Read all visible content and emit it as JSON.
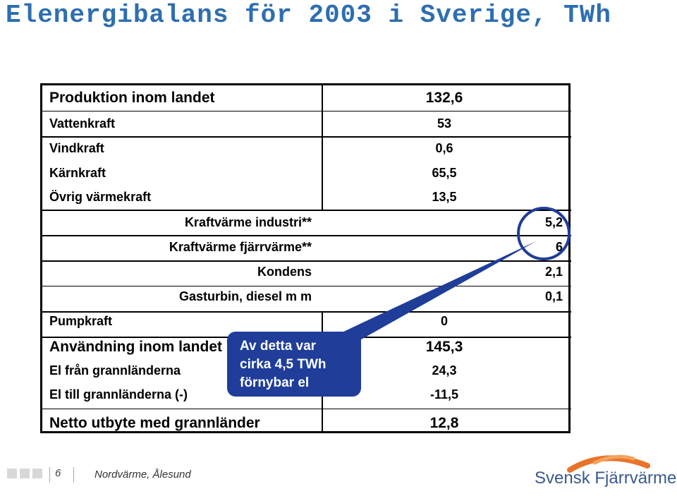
{
  "title": "Elenergibalans för 2003 i Sverige, TWh",
  "table": {
    "produktion": {
      "label": "Produktion inom landet",
      "value": "132,6"
    },
    "vattenkraft": {
      "label": "Vattenkraft",
      "value": "53"
    },
    "vindkraft": {
      "label": "Vindkraft",
      "value": "0,6"
    },
    "karnkraft": {
      "label": "Kärnkraft",
      "value": "65,5"
    },
    "ovrig": {
      "label": "Övrig värmekraft",
      "value": "13,5"
    },
    "kv_industri": {
      "label": "Kraftvärme industri**",
      "value": "5,2"
    },
    "kv_fjarr": {
      "label": "Kraftvärme fjärrvärme**",
      "value": "6"
    },
    "kondens": {
      "label": "Kondens",
      "value": "2,1"
    },
    "gasturbin": {
      "label": "Gasturbin, diesel m m",
      "value": "0,1"
    },
    "pumpkraft": {
      "label": "Pumpkraft",
      "value": "0"
    },
    "anvandning": {
      "label": "Användning inom landet",
      "value": "145,3"
    },
    "el_fran": {
      "label": "El från grannländerna",
      "value": "24,3"
    },
    "el_till": {
      "label": "El till grannländerna (-)",
      "value": "-11,5"
    },
    "netto": {
      "label": "Netto utbyte med grannländer",
      "value": "12,8"
    }
  },
  "callout": {
    "line1": "Av detta var",
    "line2": "cirka 4,5 TWh",
    "line3": "förnybar el"
  },
  "footer": {
    "page": "6",
    "text": "Nordvärme, Ålesund"
  },
  "logo": {
    "text": "Svensk Fjärrvärme"
  },
  "colors": {
    "title": "#2e6eb0",
    "callout": "#1f3d99",
    "logo_orange": "#e8742a"
  }
}
